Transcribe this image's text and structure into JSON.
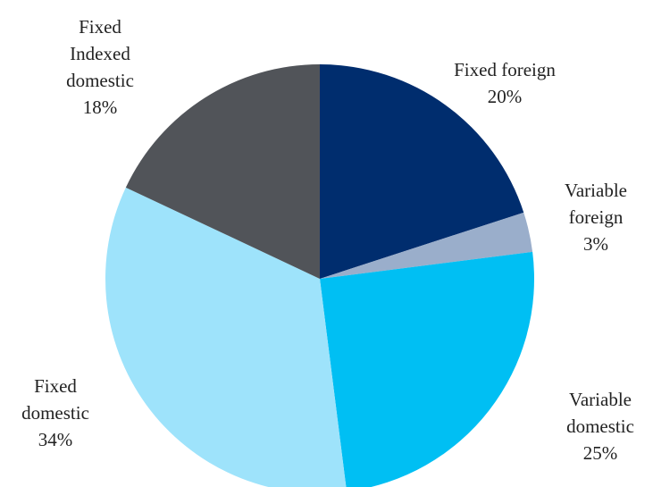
{
  "chart_data": {
    "type": "pie",
    "categories": [
      "Fixed foreign",
      "Variable\nforeign",
      "Variable\ndomestic",
      "Fixed\ndomestic",
      "Fixed\nIndexed\ndomestic"
    ],
    "values": [
      20,
      3,
      25,
      34,
      18
    ],
    "value_labels": [
      "20%",
      "3%",
      "25%",
      "34%",
      "18%"
    ],
    "colors": [
      "#002d6e",
      "#9aaecb",
      "#00bff3",
      "#9ee3fb",
      "#515459"
    ]
  }
}
